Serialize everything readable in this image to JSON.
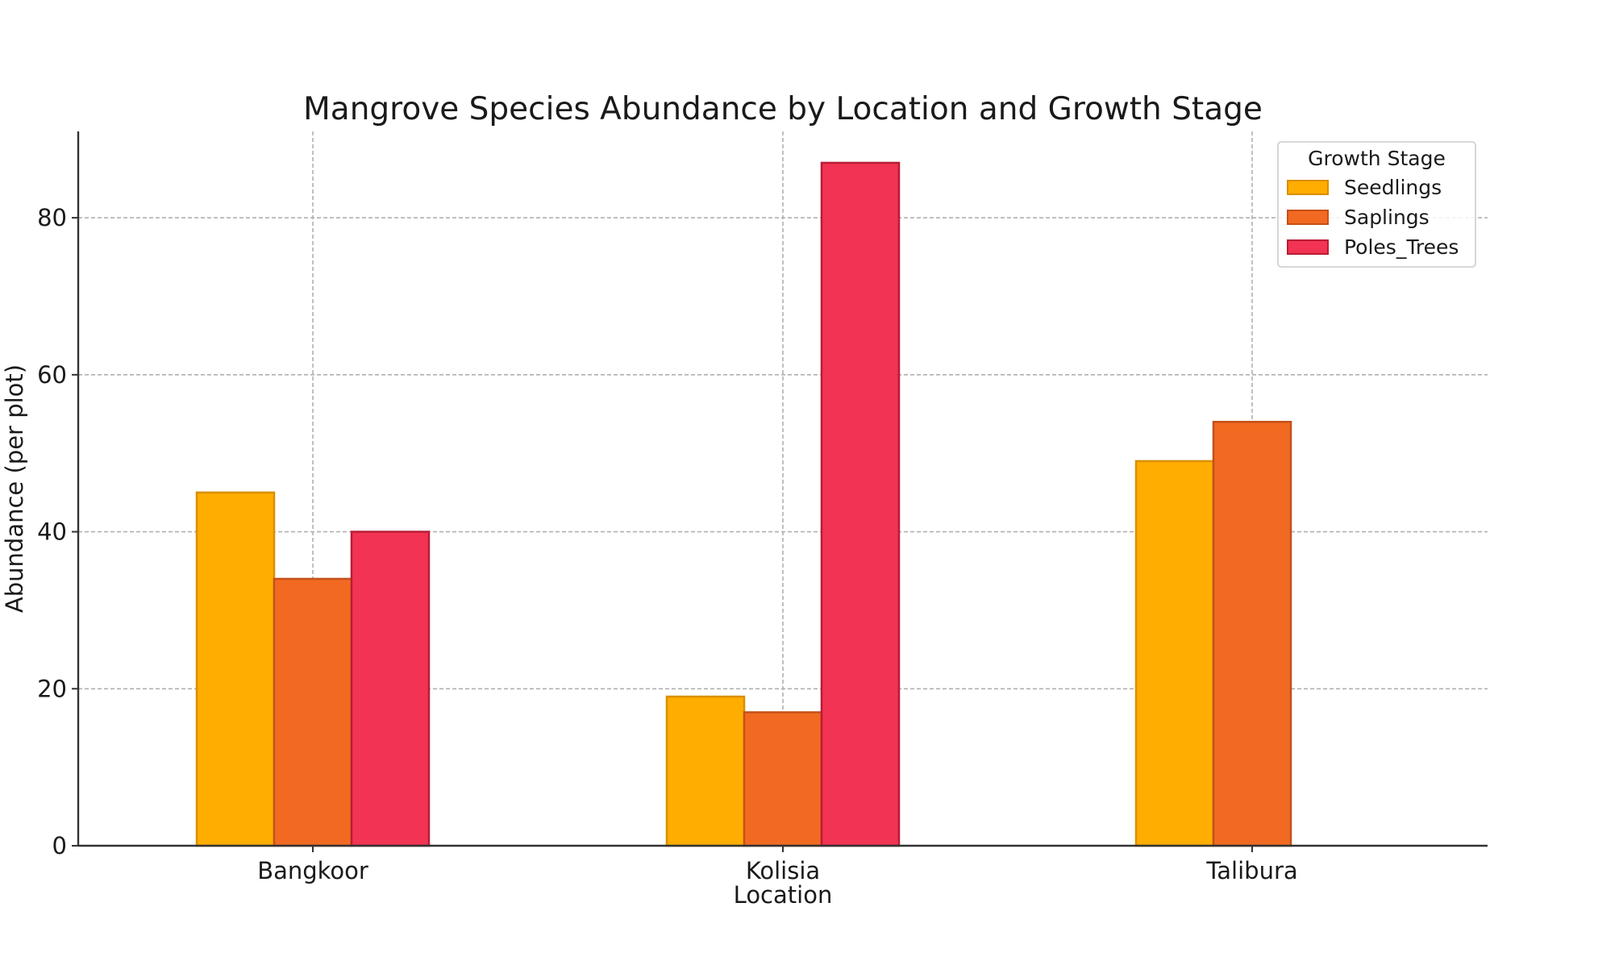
{
  "chart_data": {
    "type": "bar",
    "title": "Mangrove Species Abundance by Location and Growth Stage",
    "xlabel": "Location",
    "ylabel": "Abundance (per plot)",
    "categories": [
      "Bangkoor",
      "Kolisia",
      "Talibura"
    ],
    "series": [
      {
        "name": "Seedlings",
        "values": [
          45,
          19,
          49
        ],
        "color": "#ffad00",
        "edge": "#d98f00"
      },
      {
        "name": "Saplings",
        "values": [
          34,
          17,
          54
        ],
        "color": "#f26a21",
        "edge": "#c4501a"
      },
      {
        "name": "Poles_Trees",
        "values": [
          40,
          87,
          0
        ],
        "color": "#f23353",
        "edge": "#b81c35"
      }
    ],
    "ylim": [
      0,
      91
    ],
    "yticks": [
      0,
      20,
      40,
      60,
      80
    ],
    "grid": true,
    "legend": {
      "title": "Growth Stage",
      "placement": "top-right"
    }
  }
}
